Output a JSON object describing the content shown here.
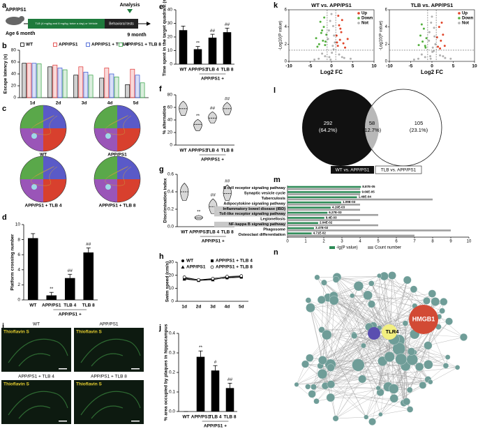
{
  "panel_labels": [
    "a",
    "b",
    "c",
    "d",
    "e",
    "f",
    "g",
    "h",
    "i",
    "j",
    "k",
    "l",
    "m",
    "n"
  ],
  "timeline": {
    "strain": "APP/PS1",
    "start": "Age 6 month",
    "treatment": "TLB (4 mg/kg and 8 mg/kg; twice a day) or Vehicle",
    "tests": "Behavioral tests",
    "analysis": "Analysis",
    "end": "9 month"
  },
  "maze": {
    "groups": [
      "WT",
      "APP/PS1",
      "APP/PS1 + TLB 4",
      "APP/PS1 + TLB 8"
    ]
  },
  "histology": {
    "groups": [
      "WT",
      "APP/PS1",
      "APP/PS1 + TLB 4",
      "APP/PS1 + TLB 8"
    ],
    "stain": "Thioflavin S"
  },
  "venn": {
    "left": {
      "count": "292",
      "percent": "(64.2%)"
    },
    "overlap": {
      "count": "58",
      "percent": "(12.7%)"
    },
    "right": {
      "count": "105",
      "percent": "(23.1%)"
    },
    "legend": [
      "WT vs. APP/PS1",
      "TLB vs. APP/PS1"
    ]
  },
  "network": {
    "nodes": [
      "HMGB1",
      "TLR4"
    ]
  },
  "chart_data": [
    {
      "type": "bar",
      "ylabel": "Escape latency (s)",
      "categories": [
        "1d",
        "2d",
        "3d",
        "4d",
        "5d"
      ],
      "series": [
        {
          "name": "WT",
          "color": "#000000",
          "values": [
            58,
            52,
            38,
            33,
            22
          ]
        },
        {
          "name": "APP/PS1",
          "color": "#e03030",
          "values": [
            58,
            55,
            52,
            50,
            48
          ]
        },
        {
          "name": "APP/PS1 + TLB 4",
          "color": "#3050d0",
          "values": [
            58,
            50,
            43,
            40,
            38
          ]
        },
        {
          "name": "APP/PS1 + TLB 8",
          "color": "#30a040",
          "values": [
            57,
            47,
            38,
            35,
            25
          ]
        }
      ],
      "ylim": [
        0,
        80
      ],
      "yticks": [
        0,
        20,
        40,
        60,
        80
      ]
    },
    {
      "type": "bar",
      "ylabel": "Platform crossing number",
      "categories": [
        "WT",
        "APP/PS1",
        "TLB 4",
        "TLB 8"
      ],
      "group_label": "APP/PS1 +",
      "values": [
        8.2,
        0.6,
        2.9,
        6.3
      ],
      "errors": [
        0.6,
        0.4,
        0.5,
        0.6
      ],
      "annotations": [
        null,
        "**",
        "##",
        "##"
      ],
      "color": "#000000",
      "ylim": [
        0,
        10
      ],
      "yticks": [
        0,
        2,
        4,
        6,
        8,
        10
      ]
    },
    {
      "type": "bar",
      "ylabel": "Time spent in the target quadrant (s)",
      "categories": [
        "WT",
        "APP/PS1",
        "TLB 4",
        "TLB 8"
      ],
      "group_label": "APP/PS1 +",
      "values": [
        25,
        11,
        19.5,
        23.5
      ],
      "errors": [
        3,
        2,
        2.5,
        3
      ],
      "annotations": [
        null,
        "**",
        "##",
        "##"
      ],
      "color": "#000000",
      "ylim": [
        0,
        40
      ],
      "yticks": [
        0,
        10,
        20,
        30,
        40
      ]
    },
    {
      "type": "violin",
      "ylabel": "% alternation",
      "categories": [
        "WT",
        "APP/PS1",
        "TLB 4",
        "TLB 8"
      ],
      "group_label": "APP/PS1 +",
      "values": [
        58,
        33,
        43,
        58
      ],
      "min": [
        47,
        23,
        35,
        48
      ],
      "max": [
        70,
        41,
        53,
        68
      ],
      "annotations": [
        null,
        "**",
        "##",
        "##"
      ],
      "color": "#d8d8d8",
      "ylim": [
        0,
        80
      ],
      "yticks": [
        0,
        20,
        40,
        60,
        80
      ]
    },
    {
      "type": "violin",
      "ylabel": "Discrimination index",
      "categories": [
        "WT",
        "APP/PS1",
        "TLB 4",
        "TLB 8"
      ],
      "group_label": "APP/PS1 +",
      "values": [
        0.4,
        0.1,
        0.23,
        0.38
      ],
      "min": [
        0.3,
        0.08,
        0.15,
        0.3
      ],
      "max": [
        0.5,
        0.13,
        0.32,
        0.48
      ],
      "annotations": [
        null,
        "**",
        "##",
        "##"
      ],
      "color": "#d8d8d8",
      "ylim": [
        0,
        0.6
      ],
      "yticks": [
        {
          "value": 0,
          "label": "0.0"
        },
        0.2,
        0.4,
        0.6
      ]
    },
    {
      "type": "line",
      "ylabel": "Swim speed (cm/s)",
      "categories": [
        "1d",
        "2d",
        "3d",
        "4d",
        "5d"
      ],
      "series": [
        {
          "name": "WT",
          "color": "#000000",
          "marker": "circle",
          "values": [
            18,
            16.5,
            17,
            18,
            18.5
          ]
        },
        {
          "name": "APP/PS1",
          "color": "#000000",
          "marker": "triangle",
          "values": [
            17,
            16,
            16.5,
            18.5,
            19
          ]
        },
        {
          "name": "APP/PS1 + TLB 4",
          "color": "#000000",
          "marker": "square",
          "values": [
            17.5,
            16,
            17,
            18,
            18.5
          ]
        },
        {
          "name": "APP/PS1 + TLB 8",
          "color": "#000000",
          "marker": "open-circle",
          "values": [
            18.5,
            16.5,
            17.5,
            19,
            19.5
          ]
        }
      ],
      "ylim": [
        0,
        30
      ],
      "yticks": [
        0,
        10,
        20,
        30
      ]
    },
    {
      "type": "bar",
      "ylabel": "% area occupied by plaques in hippocampus",
      "categories": [
        "WT",
        "APP/PS1",
        "TLB 4",
        "TLB 8"
      ],
      "group_label": "APP/PS1 +",
      "values": [
        0,
        0.28,
        0.21,
        0.12
      ],
      "errors": [
        0,
        0.03,
        0.025,
        0.025
      ],
      "annotations": [
        null,
        "**",
        "#",
        "##"
      ],
      "color": "#000000",
      "ylim": [
        0,
        0.4
      ],
      "yticks": [
        {
          "value": 0,
          "label": "0.0"
        },
        0.1,
        0.2,
        0.3,
        0.4
      ]
    },
    {
      "type": "scatter",
      "title": "WT vs. APP/PS1",
      "xlabel": "Log2 FC",
      "ylabel": "-Log10(P value)",
      "xlim": [
        -10,
        10
      ],
      "xticks": [
        -10,
        -5,
        0,
        5,
        10
      ],
      "ylim": [
        0,
        6
      ],
      "yticks": [
        0,
        2,
        4,
        6
      ],
      "xthresholds": [
        -1,
        1
      ],
      "ythreshold": 1.3,
      "series": [
        {
          "name": "Up",
          "color": "#e0452a",
          "x": [
            1.5,
            2,
            2.3,
            1.8,
            2.8,
            3.2,
            1.2,
            2.5,
            1.6,
            3.8,
            1.3,
            2.1
          ],
          "y": [
            1.8,
            2.5,
            3.4,
            4.2,
            2.1,
            1.6,
            3,
            4.8,
            5.3,
            2.6,
            2.2,
            3.8
          ]
        },
        {
          "name": "Down",
          "color": "#55b040",
          "x": [
            -1.5,
            -2,
            -2.4,
            -1.8,
            -2.9,
            -3.3,
            -1.2,
            -2.6,
            -1.7,
            -3.6,
            -1.4,
            -2.2
          ],
          "y": [
            1.9,
            2.4,
            3.3,
            4,
            2,
            1.7,
            3.1,
            4.6,
            5.1,
            2.7,
            2.3,
            3.6
          ]
        },
        {
          "name": "Not",
          "color": "#b0b0b0",
          "x": [
            -0.5,
            0.3,
            -0.8,
            0.6,
            0,
            -0.2,
            0.4,
            -1.5,
            1.8,
            -3,
            3,
            0.1,
            -0.6,
            0.8,
            -2.2,
            2.5,
            -4,
            4.5,
            -0.3,
            0.5
          ],
          "y": [
            0.5,
            1.8,
            2.6,
            3,
            5.5,
            0.2,
            4.1,
            0.6,
            0.8,
            0.3,
            0.4,
            1,
            3.6,
            2.2,
            0.9,
            0.5,
            0.2,
            0.3,
            4.7,
            1.4
          ]
        }
      ]
    },
    {
      "type": "scatter",
      "title": "TLB vs. APP/PS1",
      "xlabel": "Log2 FC",
      "ylabel": "-Log10(P value)",
      "xlim": [
        -10,
        10
      ],
      "xticks": [
        -10,
        -5,
        0,
        5,
        10
      ],
      "ylim": [
        0,
        6
      ],
      "yticks": [
        0,
        2,
        4,
        6
      ],
      "xthresholds": [
        -1,
        1
      ],
      "ythreshold": 1.3,
      "series": [
        {
          "name": "Up",
          "color": "#e0452a",
          "x": [
            1.4,
            2.1,
            2.6,
            1.7,
            3,
            1.2,
            2.3,
            1.9
          ],
          "y": [
            1.7,
            2.4,
            3.1,
            4,
            1.8,
            2.8,
            4.5,
            1.5
          ]
        },
        {
          "name": "Down",
          "color": "#55b040",
          "x": [
            -1.6,
            -2.2,
            -2.7,
            -1.9,
            -3.1,
            -1.3,
            -2.4,
            -1.5
          ],
          "y": [
            1.8,
            2.3,
            3,
            3.8,
            1.9,
            2.7,
            4.3,
            1.6
          ]
        },
        {
          "name": "Not",
          "color": "#b0b0b0",
          "x": [
            -0.4,
            0.2,
            -0.7,
            0.6,
            0,
            -0.3,
            0.5,
            -1.6,
            1.9,
            -3.2,
            3.1,
            0.1,
            -0.6,
            0.8,
            -2.4,
            2.6,
            -4.2,
            4.4,
            -0.2,
            0.4
          ],
          "y": [
            0.6,
            1.6,
            2.4,
            2.9,
            5.2,
            0.3,
            3.9,
            0.5,
            0.7,
            0.3,
            0.4,
            1.1,
            3.4,
            2,
            0.8,
            0.6,
            0.2,
            0.3,
            4.5,
            1.2
          ]
        }
      ]
    },
    {
      "type": "hbar",
      "categories": [
        "B cell receptor signaling pathway",
        "Synaptic vesicle cycle",
        "Tuberculosis",
        "Adipocytokine signaling pathway",
        "Inflammatory bowel disease (IBD)",
        "Toll-like receptor signaling pathway",
        "Legionellosis",
        "NF-kappa B signaling pathway",
        "Phagosome",
        "Osteoclast differentiation"
      ],
      "highlight": [
        "Inflammatory bowel disease (IBD)",
        "Toll-like receptor signaling pathway",
        "NF-kappa B signaling pathway"
      ],
      "series": [
        {
          "name": "-lg(P value)",
          "color": "#2e8b57",
          "values": [
            4.05,
            4.02,
            3.83,
            2.96,
            2.38,
            2.2,
            2.03,
            1.69,
            1.46,
            1.33
          ]
        },
        {
          "name": "Count number",
          "color": "#a0a0a0",
          "values": [
            4,
            4,
            8,
            4,
            4,
            5,
            4,
            5,
            9,
            7
          ]
        }
      ],
      "pvalue_labels": [
        "8.87E-05",
        "9.66E-05",
        "1.49E-04",
        "1.09E-03",
        "4.19E-03",
        "6.27E-03",
        "9.4E-03",
        "2.04E-02",
        "3.47E-02",
        "4.71E-02"
      ],
      "xlim": [
        0,
        10
      ],
      "xticks": [
        0,
        1,
        2,
        3,
        4,
        5,
        6,
        7,
        8,
        9,
        10
      ]
    }
  ]
}
